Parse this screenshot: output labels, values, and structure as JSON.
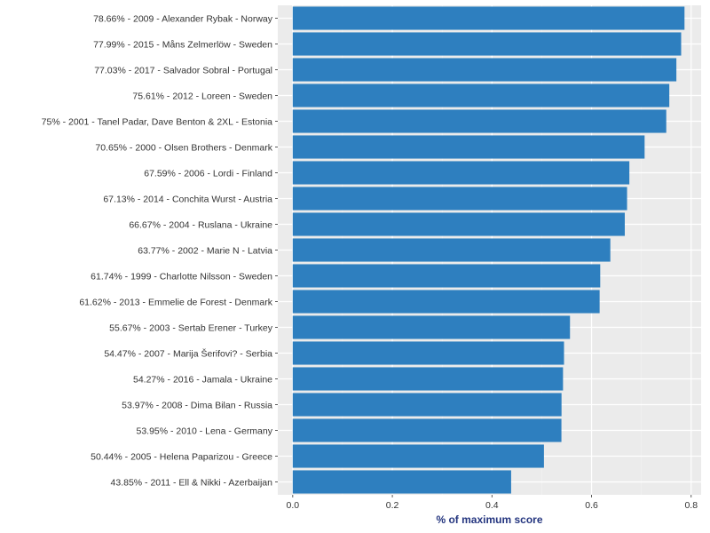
{
  "chart_data": {
    "type": "bar",
    "orientation": "horizontal",
    "xlabel": "% of maximum score",
    "xlim": [
      -0.03,
      0.82
    ],
    "xticks": [
      0.0,
      0.2,
      0.4,
      0.6,
      0.8
    ],
    "xtick_labels": [
      "0.0",
      "0.2",
      "0.4",
      "0.6",
      "0.8"
    ],
    "grid": true,
    "categories": [
      "78.66% - 2009 - Alexander Rybak - Norway",
      "77.99% - 2015 - Måns Zelmerlöw - Sweden",
      "77.03% - 2017 - Salvador Sobral - Portugal",
      "75.61% - 2012 - Loreen - Sweden",
      "75% - 2001 - Tanel Padar, Dave Benton & 2XL - Estonia",
      "70.65% - 2000 - Olsen Brothers - Denmark",
      "67.59% - 2006 - Lordi - Finland",
      "67.13% - 2014 - Conchita Wurst - Austria",
      "66.67% - 2004 - Ruslana - Ukraine",
      "63.77% - 2002 - Marie N - Latvia",
      "61.74% - 1999 - Charlotte Nilsson - Sweden",
      "61.62% - 2013 - Emmelie de Forest - Denmark",
      "55.67% - 2003 - Sertab Erener - Turkey",
      "54.47% - 2007 - Marija Šerifovi? - Serbia",
      "54.27% - 2016 - Jamala - Ukraine",
      "53.97% - 2008 - Dima Bilan - Russia",
      "53.95% - 2010 - Lena - Germany",
      "50.44% - 2005 - Helena Paparizou - Greece",
      "43.85% - 2011 - Ell & Nikki - Azerbaijan"
    ],
    "values": [
      0.7866,
      0.7799,
      0.7703,
      0.7561,
      0.75,
      0.7065,
      0.6759,
      0.6713,
      0.6667,
      0.6377,
      0.6174,
      0.6162,
      0.5567,
      0.5447,
      0.5427,
      0.5397,
      0.5395,
      0.5044,
      0.4385
    ]
  },
  "colors": {
    "bar": "#2e7fbf",
    "panel_background": "#ebebeb",
    "grid_major": "#ffffff",
    "grid_minor": "#f4f4f4",
    "axis_title": "#24357f"
  }
}
